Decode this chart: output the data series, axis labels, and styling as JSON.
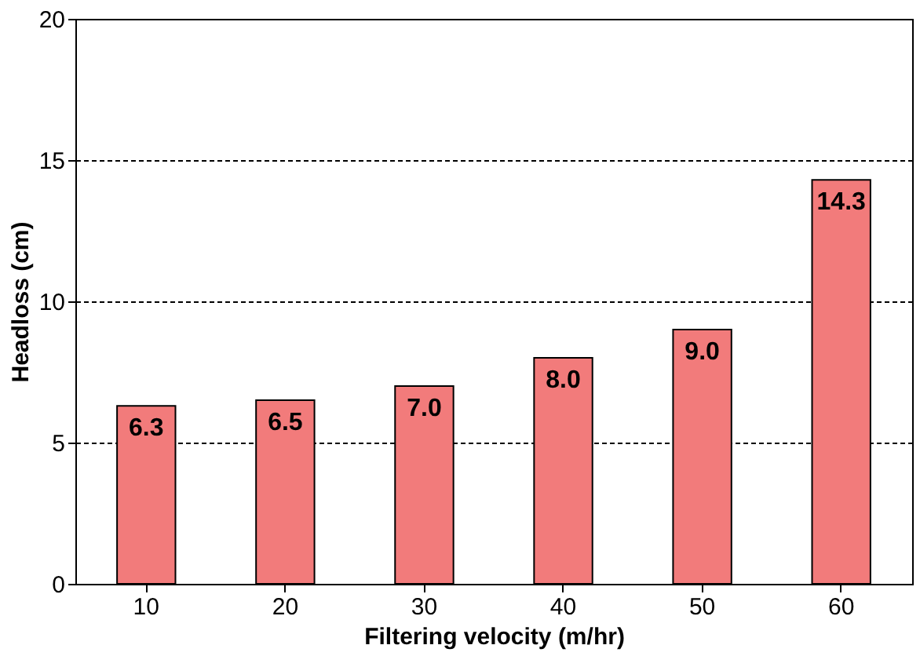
{
  "chart_data": {
    "type": "bar",
    "xlabel": "Filtering velocity (m/hr)",
    "ylabel": "Headloss (cm)",
    "categories": [
      "10",
      "20",
      "30",
      "40",
      "50",
      "60"
    ],
    "values": [
      6.3,
      6.5,
      7.0,
      8.0,
      9.0,
      14.3
    ],
    "value_labels": [
      "6.3",
      "6.5",
      "7.0",
      "8.0",
      "9.0",
      "14.3"
    ],
    "color": "#f27b7b",
    "ylim": [
      0,
      20
    ],
    "yticks": [
      0,
      5,
      10,
      15,
      20
    ],
    "grid": "y"
  }
}
